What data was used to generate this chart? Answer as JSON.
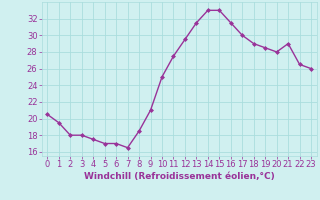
{
  "x": [
    0,
    1,
    2,
    3,
    4,
    5,
    6,
    7,
    8,
    9,
    10,
    11,
    12,
    13,
    14,
    15,
    16,
    17,
    18,
    19,
    20,
    21,
    22,
    23
  ],
  "y": [
    20.5,
    19.5,
    18.0,
    18.0,
    17.5,
    17.0,
    17.0,
    16.5,
    18.5,
    21.0,
    25.0,
    27.5,
    29.5,
    31.5,
    33.0,
    33.0,
    31.5,
    30.0,
    29.0,
    28.5,
    28.0,
    29.0,
    26.5,
    26.0
  ],
  "line_color": "#993399",
  "marker": "D",
  "marker_size": 2,
  "linewidth": 1.0,
  "bg_color": "#d0f0f0",
  "grid_color": "#aadddd",
  "xlabel": "Windchill (Refroidissement éolien,°C)",
  "xlabel_fontsize": 6.5,
  "ylabel_ticks": [
    16,
    18,
    20,
    22,
    24,
    26,
    28,
    30,
    32
  ],
  "xlim": [
    -0.5,
    23.5
  ],
  "ylim": [
    15.5,
    34.0
  ],
  "tick_fontsize": 6.0,
  "tick_color": "#993399",
  "label_color": "#993399"
}
